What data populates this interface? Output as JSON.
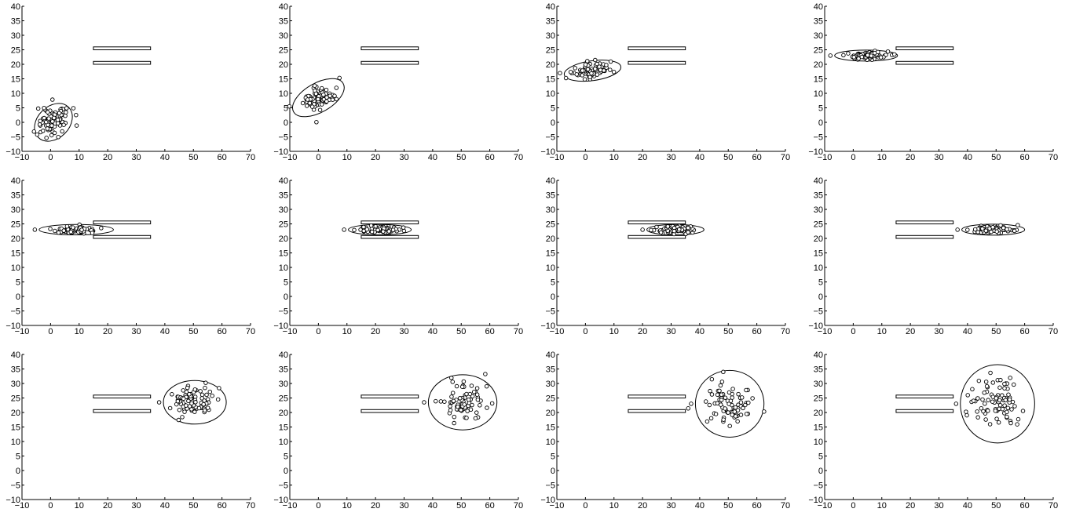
{
  "figure": {
    "rows": 3,
    "cols": 4,
    "line_color": "#000000",
    "background": "#ffffff"
  },
  "axes_template": {
    "xlim": [
      -10,
      70
    ],
    "ylim": [
      -10,
      40
    ],
    "xticks": [
      -10,
      0,
      10,
      20,
      30,
      40,
      50,
      60,
      70
    ],
    "yticks": [
      -10,
      -5,
      0,
      5,
      10,
      15,
      20,
      25,
      30,
      35,
      40
    ],
    "tick_labels_x": [
      "−10",
      "0",
      "10",
      "20",
      "30",
      "40",
      "50",
      "60",
      "70"
    ],
    "tick_labels_y": [
      "−10",
      "−5",
      "0",
      "5",
      "10",
      "15",
      "20",
      "25",
      "30",
      "35",
      "40"
    ],
    "grid": false,
    "obstacles": [
      {
        "x": [
          15,
          35
        ],
        "y": [
          25,
          26
        ]
      },
      {
        "x": [
          15,
          35
        ],
        "y": [
          20,
          21
        ]
      }
    ]
  },
  "chart_data": [
    {
      "type": "scatter",
      "panel": 1,
      "ellipse": {
        "cx": 1,
        "cy": 0,
        "rx": 7.5,
        "ry": 5.5,
        "angle": 45
      },
      "spread": [
        3.2,
        2.4
      ],
      "points": 80
    },
    {
      "type": "scatter",
      "panel": 2,
      "ellipse": {
        "cx": 0,
        "cy": 8.5,
        "rx": 10,
        "ry": 5,
        "angle": 30
      },
      "spread": [
        3.2,
        2.0
      ],
      "points": 80
    },
    {
      "type": "scatter",
      "panel": 3,
      "ellipse": {
        "cx": 2.5,
        "cy": 17.8,
        "rx": 10,
        "ry": 3.4,
        "angle": 8
      },
      "spread": [
        3.5,
        1.2
      ],
      "points": 80
    },
    {
      "type": "scatter",
      "panel": 4,
      "ellipse": {
        "cx": 4.5,
        "cy": 23,
        "rx": 11,
        "ry": 1.9,
        "angle": 0
      },
      "spread": [
        3.6,
        0.65
      ],
      "points": 80
    },
    {
      "type": "scatter",
      "panel": 5,
      "ellipse": {
        "cx": 9,
        "cy": 23,
        "rx": 13,
        "ry": 1.8,
        "angle": 0
      },
      "spread": [
        4.0,
        0.6
      ],
      "points": 80
    },
    {
      "type": "scatter",
      "panel": 6,
      "ellipse": {
        "cx": 21.5,
        "cy": 23,
        "rx": 11,
        "ry": 1.8,
        "angle": 0
      },
      "spread": [
        3.6,
        0.6
      ],
      "points": 80
    },
    {
      "type": "scatter",
      "panel": 7,
      "ellipse": {
        "cx": 31.5,
        "cy": 23,
        "rx": 10,
        "ry": 1.8,
        "angle": 0
      },
      "spread": [
        3.2,
        0.6
      ],
      "points": 80
    },
    {
      "type": "scatter",
      "panel": 8,
      "ellipse": {
        "cx": 49,
        "cy": 23,
        "rx": 11,
        "ry": 1.9,
        "angle": 0
      },
      "spread": [
        3.6,
        0.65
      ],
      "points": 80
    },
    {
      "type": "scatter",
      "panel": 9,
      "ellipse": {
        "cx": 50.5,
        "cy": 23.5,
        "rx": 11,
        "ry": 7.5,
        "angle": 0
      },
      "spread": [
        3.6,
        2.6
      ],
      "points": 80
    },
    {
      "type": "scatter",
      "panel": 10,
      "ellipse": {
        "cx": 50.5,
        "cy": 23.5,
        "rx": 12,
        "ry": 9.5,
        "angle": 0
      },
      "spread": [
        4.0,
        3.2
      ],
      "points": 80
    },
    {
      "type": "scatter",
      "panel": 11,
      "ellipse": {
        "cx": 50.5,
        "cy": 23,
        "rx": 12,
        "ry": 11.5,
        "angle": 0
      },
      "spread": [
        4.0,
        3.8
      ],
      "points": 80
    },
    {
      "type": "scatter",
      "panel": 12,
      "ellipse": {
        "cx": 50.5,
        "cy": 23,
        "rx": 13,
        "ry": 13.5,
        "angle": 0
      },
      "spread": [
        4.3,
        4.4
      ],
      "points": 80
    }
  ]
}
